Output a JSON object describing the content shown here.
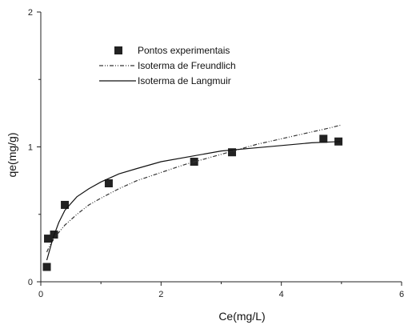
{
  "chart_data": {
    "type": "scatter",
    "xlabel": "Ce(mg/L)",
    "ylabel": "qe(mg/g)",
    "xlim": [
      0,
      6
    ],
    "ylim": [
      0,
      2
    ],
    "xticks": [
      0,
      2,
      4,
      6
    ],
    "yticks": [
      0,
      1,
      2
    ],
    "xtick_labels": [
      "0",
      "2",
      "4",
      "6"
    ],
    "ytick_labels": [
      "0",
      "1",
      "2"
    ],
    "grid": false,
    "legend_position": "top-left",
    "series": [
      {
        "name": "Pontos experimentais",
        "kind": "markers",
        "marker": "square",
        "color": "#222222",
        "x": [
          0.1,
          0.12,
          0.22,
          0.4,
          1.13,
          2.55,
          3.18,
          4.7,
          4.95
        ],
        "y": [
          0.11,
          0.32,
          0.35,
          0.57,
          0.73,
          0.89,
          0.96,
          1.06,
          1.04
        ]
      },
      {
        "name": "Isoterma de Freundlich",
        "kind": "line",
        "dash": "dash-dot-dot",
        "color": "#333333",
        "x": [
          0.1,
          0.15,
          0.25,
          0.4,
          0.6,
          0.8,
          1.0,
          1.3,
          1.6,
          2.0,
          2.4,
          2.8,
          3.2,
          3.6,
          4.0,
          4.4,
          4.8,
          4.98
        ],
        "y": [
          0.22,
          0.27,
          0.34,
          0.42,
          0.5,
          0.57,
          0.62,
          0.69,
          0.75,
          0.81,
          0.87,
          0.92,
          0.97,
          1.02,
          1.06,
          1.1,
          1.14,
          1.16
        ]
      },
      {
        "name": "Isoterma de Langmuir",
        "kind": "line",
        "dash": "solid",
        "color": "#111111",
        "x": [
          0.1,
          0.15,
          0.2,
          0.3,
          0.4,
          0.6,
          0.8,
          1.0,
          1.3,
          1.6,
          2.0,
          2.5,
          3.0,
          3.5,
          4.0,
          4.5,
          4.98
        ],
        "y": [
          0.16,
          0.24,
          0.32,
          0.44,
          0.53,
          0.63,
          0.69,
          0.74,
          0.8,
          0.84,
          0.89,
          0.93,
          0.97,
          0.99,
          1.01,
          1.03,
          1.04
        ]
      }
    ]
  }
}
